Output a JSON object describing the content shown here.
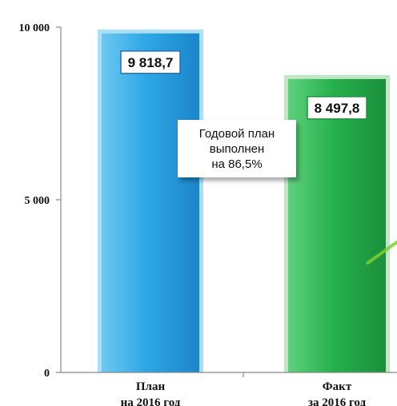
{
  "chart_data": {
    "type": "bar",
    "categories": [
      [
        "План",
        "на 2016 год"
      ],
      [
        "Факт",
        "за 2016 год"
      ]
    ],
    "values": [
      9818.7,
      8497.8
    ],
    "data_labels": [
      "9 818,7",
      "8 497,8"
    ],
    "ylim": [
      0,
      10000
    ],
    "yticks": [
      {
        "value": 0,
        "label": "0"
      },
      {
        "value": 5000,
        "label": "5 000"
      },
      {
        "value": 10000,
        "label": "10 000"
      }
    ],
    "grid": false,
    "colors": {
      "bars": [
        "#2ea7e6",
        "#27b24e"
      ],
      "bar_outline": [
        "#a9dff7",
        "#bfe6c5"
      ],
      "label_border": [
        "#2a6fb5",
        "#1f8f3d"
      ],
      "axis": "#888888",
      "arrow": "#7ccf2f"
    },
    "annotation": {
      "lines": [
        "Годовой план",
        "выполнен",
        "на 86,5%"
      ]
    }
  }
}
